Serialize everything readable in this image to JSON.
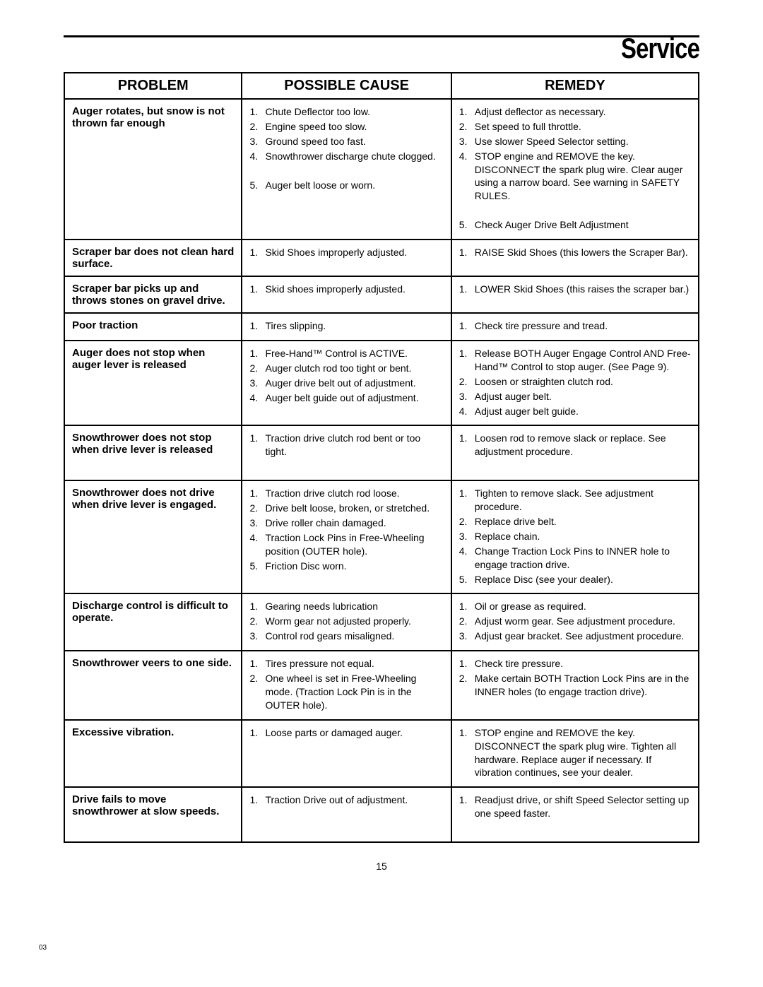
{
  "page": {
    "title": "Service",
    "number": "15",
    "footer_code": "03"
  },
  "table": {
    "headers": {
      "problem": "PROBLEM",
      "cause": "POSSIBLE CAUSE",
      "remedy": "REMEDY"
    },
    "rows": [
      {
        "problem": "Auger rotates, but snow is not thrown far enough",
        "causes": [
          "Chute Deflector too low.",
          "Engine speed too slow.",
          "Ground speed too fast.",
          "Snowthrower discharge chute clogged.",
          "Auger belt loose or worn."
        ],
        "remedies": [
          "Adjust deflector as necessary.",
          "Set speed to full throttle.",
          "Use slower Speed Selector setting.",
          "STOP engine and REMOVE the key. DISCONNECT the spark plug wire. Clear auger using a narrow board. See warning in SAFETY RULES.",
          "Check Auger Drive Belt Adjustment"
        ],
        "gap_before_index": 4
      },
      {
        "problem": "Scraper bar does not clean hard surface.",
        "causes": [
          "Skid Shoes improperly adjusted."
        ],
        "remedies": [
          "RAISE Skid Shoes (this lowers the Scraper Bar)."
        ]
      },
      {
        "problem": "Scraper bar picks up and throws stones on gravel drive.",
        "causes": [
          "Skid shoes improperly adjusted."
        ],
        "remedies": [
          "LOWER Skid Shoes (this raises the scraper bar.)"
        ]
      },
      {
        "problem": "Poor traction",
        "causes": [
          "Tires slipping."
        ],
        "remedies": [
          "Check tire pressure and tread."
        ]
      },
      {
        "problem": "Auger does not stop when auger lever is released",
        "causes": [
          "Free-Hand™ Control is ACTIVE.",
          "Auger clutch rod too tight or bent.",
          "Auger drive belt out of adjustment.",
          "Auger belt guide out of adjustment."
        ],
        "remedies": [
          "Release BOTH Auger Engage Control AND Free-Hand™ Control to stop auger. (See Page 9).",
          "Loosen or straighten clutch rod.",
          "Adjust auger belt.",
          "Adjust auger belt guide."
        ]
      },
      {
        "problem": "Snowthrower does not stop when drive lever is released",
        "causes": [
          "Traction drive clutch rod bent or too tight."
        ],
        "remedies": [
          "Loosen rod to remove slack or replace. See adjustment procedure."
        ],
        "extra_bottom_space": true
      },
      {
        "problem": "Snowthrower does not drive when drive lever is engaged.",
        "causes": [
          "Traction drive clutch rod loose.",
          "Drive belt loose, broken, or stretched.",
          "Drive roller chain damaged.",
          "Traction Lock Pins in Free-Wheeling position (OUTER hole).",
          "Friction Disc worn."
        ],
        "remedies": [
          "Tighten to remove slack. See adjustment procedure.",
          "Replace drive belt.",
          "Replace chain.",
          "Change Traction Lock Pins to INNER hole to engage traction drive.",
          "Replace Disc (see your dealer)."
        ]
      },
      {
        "problem": "Discharge control is difficult to operate.",
        "causes": [
          "Gearing needs lubrication",
          "Worm gear not adjusted properly.",
          "Control rod gears misaligned."
        ],
        "remedies": [
          "Oil or grease as required.",
          "Adjust worm gear. See adjustment procedure.",
          "Adjust gear bracket. See adjustment procedure."
        ]
      },
      {
        "problem": "Snowthrower veers to one side.",
        "causes": [
          "Tires pressure not equal.",
          "One wheel is set in Free-Wheeling mode. (Traction Lock Pin is in the OUTER hole)."
        ],
        "remedies": [
          "Check tire pressure.",
          "Make certain BOTH Traction Lock Pins are in the INNER holes (to engage traction drive)."
        ]
      },
      {
        "problem": "Excessive vibration.",
        "causes": [
          "Loose parts or damaged auger."
        ],
        "remedies": [
          "STOP engine and REMOVE the key. DISCONNECT the spark plug wire. Tighten all hardware. Replace auger if necessary. If vibration continues, see your dealer."
        ]
      },
      {
        "problem": "Drive fails to move snowthrower at slow speeds.",
        "causes": [
          "Traction Drive out of adjustment."
        ],
        "remedies": [
          "Readjust drive, or shift Speed Selector setting up one speed faster."
        ],
        "extra_bottom_space": true
      }
    ]
  }
}
